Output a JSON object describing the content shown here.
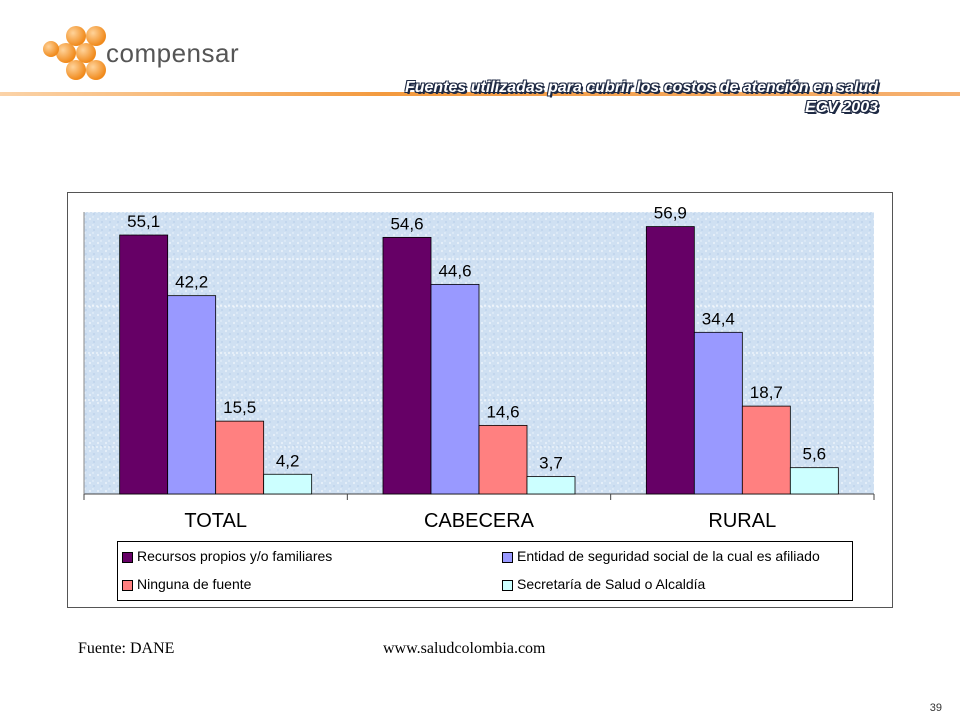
{
  "brand": {
    "name": "compensar",
    "logo_label": "compensar"
  },
  "header": {
    "title_line1": "Fuentes utilizadas para cubrir los costos de atención en salud",
    "title_line2": "ECV 2003"
  },
  "chart_data": {
    "type": "bar",
    "categories": [
      "TOTAL",
      "CABECERA",
      "RURAL"
    ],
    "series": [
      {
        "name": "Recursos propios y/o  familiares",
        "color": "#660066",
        "values": [
          55.1,
          54.6,
          56.9
        ],
        "labels": [
          "55,1",
          "54,6",
          "56,9"
        ]
      },
      {
        "name": "Entidad de seguridad social de la cual es afiliado",
        "color": "#9999ff",
        "values": [
          42.2,
          44.6,
          34.4
        ],
        "labels": [
          "42,2",
          "44,6",
          "34,4"
        ]
      },
      {
        "name": "Ninguna de fuente",
        "color": "#ff8080",
        "values": [
          15.5,
          14.6,
          18.7
        ],
        "labels": [
          "15,5",
          "14,6",
          "18,7"
        ]
      },
      {
        "name": "Secretaría de Salud o Alcaldía",
        "color": "#ccffff",
        "values": [
          4.2,
          3.7,
          5.6
        ],
        "labels": [
          "4,2",
          "3,7",
          "5,6"
        ]
      }
    ],
    "ylim": [
      0,
      60
    ],
    "grid": true,
    "legend_position": "bottom"
  },
  "footer": {
    "source": "Fuente: DANE",
    "url": "www.saludcolombia.com",
    "page_number": "39"
  }
}
